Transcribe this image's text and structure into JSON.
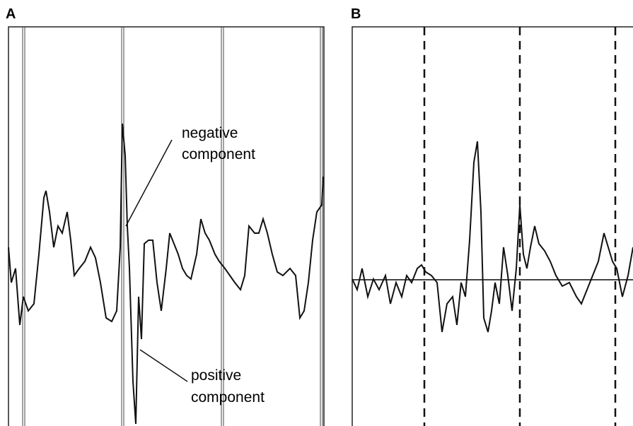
{
  "panels": [
    {
      "label": "A",
      "annotations": [
        {
          "lines": [
            "negative",
            "component"
          ]
        },
        {
          "lines": [
            "positive",
            "component"
          ]
        }
      ]
    },
    {
      "label": "B"
    }
  ]
}
